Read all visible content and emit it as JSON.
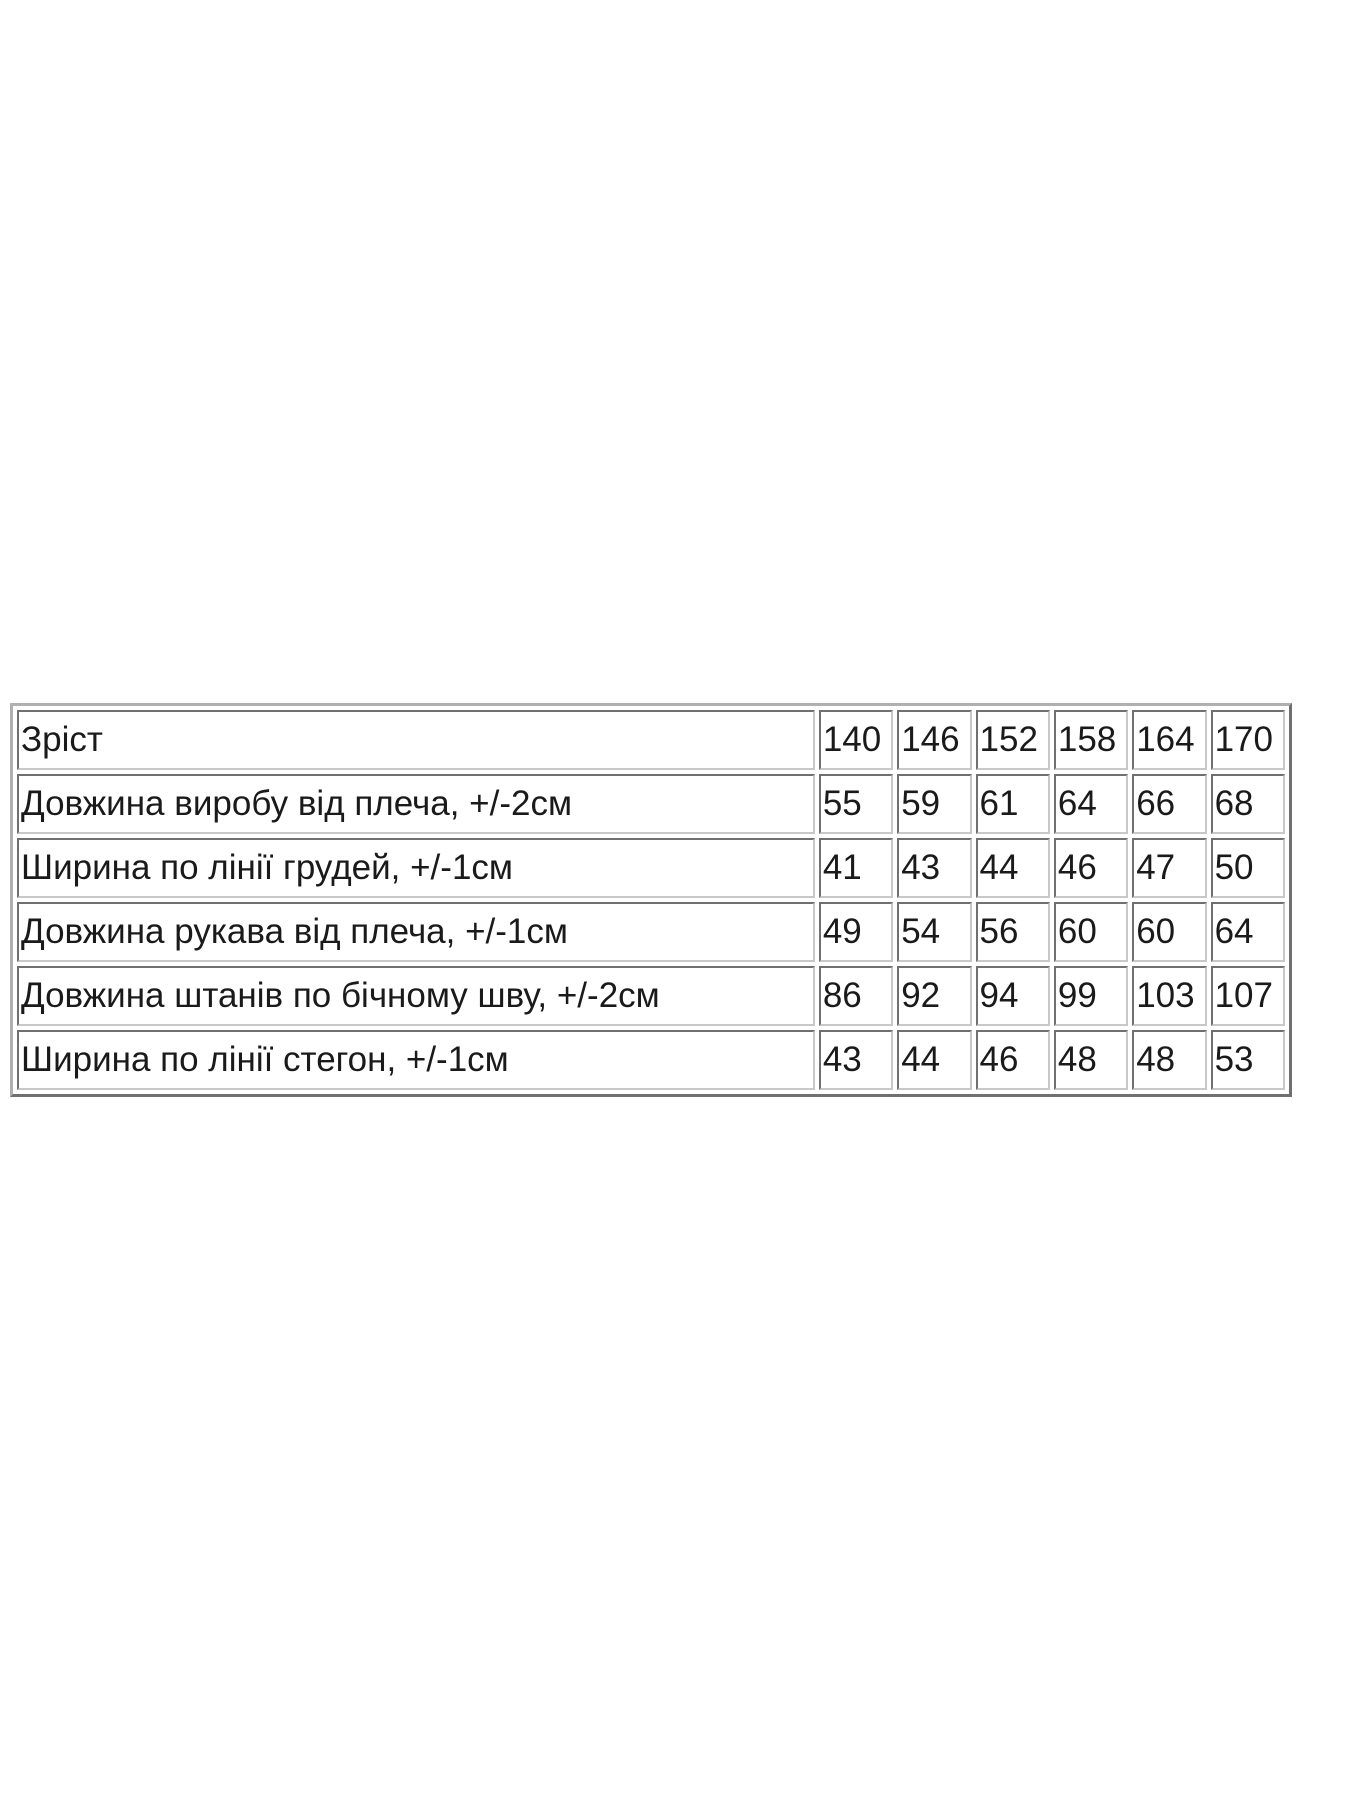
{
  "table": {
    "rows": [
      {
        "label": "Зріст",
        "values": [
          "140",
          "146",
          "152",
          "158",
          "164",
          "170"
        ]
      },
      {
        "label": "Довжина виробу від плеча, +/-2см",
        "values": [
          "55",
          "59",
          "61",
          "64",
          "66",
          "68"
        ]
      },
      {
        "label": "Ширина по лінії грудей, +/-1см",
        "values": [
          "41",
          "43",
          "44",
          "46",
          "47",
          "50"
        ]
      },
      {
        "label": "Довжина рукава від плеча, +/-1см",
        "values": [
          "49",
          "54",
          "56",
          "60",
          "60",
          "64"
        ]
      },
      {
        "label": "Довжина штанів по бічному шву, +/-2см",
        "values": [
          "86",
          "92",
          "94",
          "99",
          "103",
          "107"
        ]
      },
      {
        "label": "Ширина по лінії стегон, +/-1см",
        "values": [
          "43",
          "44",
          "46",
          "48",
          "48",
          "53"
        ]
      }
    ]
  }
}
